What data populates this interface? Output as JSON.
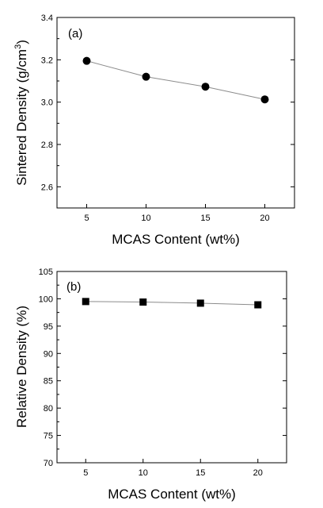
{
  "chart_data": [
    {
      "type": "line",
      "panel_label": "(a)",
      "xlabel": "MCAS Content (wt%)",
      "ylabel_main": "Sintered Density (g/cm",
      "ylabel_sup": "3",
      "ylabel_close": ")",
      "x": [
        5,
        10,
        15,
        20
      ],
      "series": [
        {
          "values": [
            3.195,
            3.12,
            3.073,
            3.013
          ],
          "marker": "circle"
        }
      ],
      "xlim": [
        2.5,
        22.5
      ],
      "ylim": [
        2.5,
        3.4
      ],
      "xticks": [
        "5",
        "10",
        "15",
        "20"
      ],
      "yticks": [
        "2.6",
        "2.8",
        "3.0",
        "3.2",
        "3.4"
      ],
      "ytick_values": [
        2.6,
        2.8,
        3.0,
        3.2,
        3.4
      ],
      "grid": false
    },
    {
      "type": "line",
      "panel_label": "(b)",
      "xlabel": "MCAS Content (wt%)",
      "ylabel_main": "Relative Density (%)",
      "ylabel_sup": "",
      "ylabel_close": "",
      "x": [
        5,
        10,
        15,
        20
      ],
      "series": [
        {
          "values": [
            99.5,
            99.4,
            99.2,
            98.9
          ],
          "marker": "square"
        }
      ],
      "xlim": [
        2.5,
        22.5
      ],
      "ylim": [
        70,
        105
      ],
      "xticks": [
        "5",
        "10",
        "15",
        "20"
      ],
      "yticks": [
        "70",
        "75",
        "80",
        "85",
        "90",
        "95",
        "100",
        "105"
      ],
      "ytick_values": [
        70,
        75,
        80,
        85,
        90,
        95,
        100,
        105
      ],
      "grid": false
    }
  ],
  "colors": {
    "axis": "#000000",
    "line": "#8c8c8c",
    "marker": "#000000"
  }
}
